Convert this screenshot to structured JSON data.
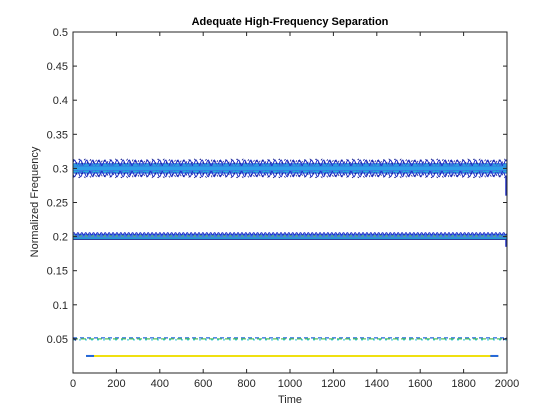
{
  "chart_data": {
    "type": "line",
    "title": "Adequate High-Frequency Separation",
    "xlabel": "Time",
    "ylabel": "Normalized Frequency",
    "xlim": [
      0,
      2000
    ],
    "ylim": [
      0,
      0.5
    ],
    "xticks": [
      0,
      200,
      400,
      600,
      800,
      1000,
      1200,
      1400,
      1600,
      1800,
      2000
    ],
    "yticks": [
      0.05,
      0.1,
      0.15,
      0.2,
      0.25,
      0.3,
      0.35,
      0.4,
      0.45,
      0.5
    ],
    "xtick_labels": [
      "0",
      "200",
      "400",
      "600",
      "800",
      "1000",
      "1200",
      "1400",
      "1600",
      "1800",
      "2000"
    ],
    "ytick_labels": [
      "0.05",
      "0.1",
      "0.15",
      "0.2",
      "0.25",
      "0.3",
      "0.35",
      "0.4",
      "0.45",
      "0.5"
    ],
    "grid": false,
    "colors": {
      "deep_blue": "#1f2fc8",
      "blue": "#2266dd",
      "light_blue": "#2ea0e8",
      "cyan": "#20c0d8",
      "green": "#58c060",
      "yellow": "#f0e010",
      "navy": "#141e8c",
      "axis": "#262626"
    },
    "series": [
      {
        "center": 0.3,
        "halfwidth": 0.011,
        "oscillation": 0.008,
        "period": 28,
        "x": [
          0,
          2000
        ]
      },
      {
        "center": 0.2,
        "halfwidth": 0.004,
        "oscillation": 0.002,
        "period": 18,
        "x": [
          0,
          2000
        ]
      },
      {
        "center": 0.05,
        "halfwidth": 0.0015,
        "oscillation": 0.0005,
        "period": 30,
        "x": [
          0,
          2000
        ]
      },
      {
        "center": 0.025,
        "halfwidth": 0.0006,
        "oscillation": 0.0,
        "period": 0,
        "x": [
          60,
          1960
        ]
      }
    ]
  }
}
